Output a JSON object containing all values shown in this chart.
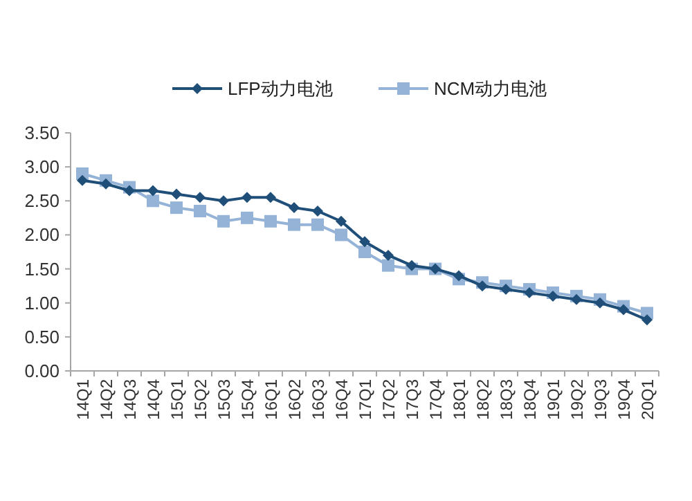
{
  "chart_data": {
    "type": "line",
    "categories": [
      "14Q1",
      "14Q2",
      "14Q3",
      "14Q4",
      "15Q1",
      "15Q2",
      "15Q3",
      "15Q4",
      "16Q1",
      "16Q2",
      "16Q3",
      "16Q4",
      "17Q1",
      "17Q2",
      "17Q3",
      "17Q4",
      "18Q1",
      "18Q2",
      "18Q3",
      "18Q4",
      "19Q1",
      "19Q2",
      "19Q3",
      "19Q4",
      "20Q1"
    ],
    "series": [
      {
        "name": "LFP动力电池",
        "color": "#1f4e79",
        "marker": "diamond",
        "values": [
          2.8,
          2.75,
          2.65,
          2.65,
          2.6,
          2.55,
          2.5,
          2.55,
          2.55,
          2.4,
          2.35,
          2.2,
          1.9,
          1.7,
          1.55,
          1.5,
          1.4,
          1.25,
          1.2,
          1.15,
          1.1,
          1.05,
          1.0,
          0.9,
          0.75
        ]
      },
      {
        "name": "NCM动力电池",
        "color": "#95b3d7",
        "marker": "square",
        "values": [
          2.9,
          2.8,
          2.7,
          2.5,
          2.4,
          2.35,
          2.2,
          2.25,
          2.2,
          2.15,
          2.15,
          2.0,
          1.75,
          1.55,
          1.5,
          1.5,
          1.35,
          1.3,
          1.25,
          1.2,
          1.15,
          1.1,
          1.05,
          0.95,
          0.85
        ]
      }
    ],
    "ylim": [
      0,
      3.5
    ],
    "yticks": [
      {
        "value": 0,
        "label": "0.00"
      },
      {
        "value": 0.5,
        "label": "0.50"
      },
      {
        "value": 1,
        "label": "1.00"
      },
      {
        "value": 1.5,
        "label": "1.50"
      },
      {
        "value": 2,
        "label": "2.00"
      },
      {
        "value": 2.5,
        "label": "2.50"
      },
      {
        "value": 3,
        "label": "3.00"
      },
      {
        "value": 3.5,
        "label": "3.50"
      }
    ],
    "legend": "top"
  }
}
